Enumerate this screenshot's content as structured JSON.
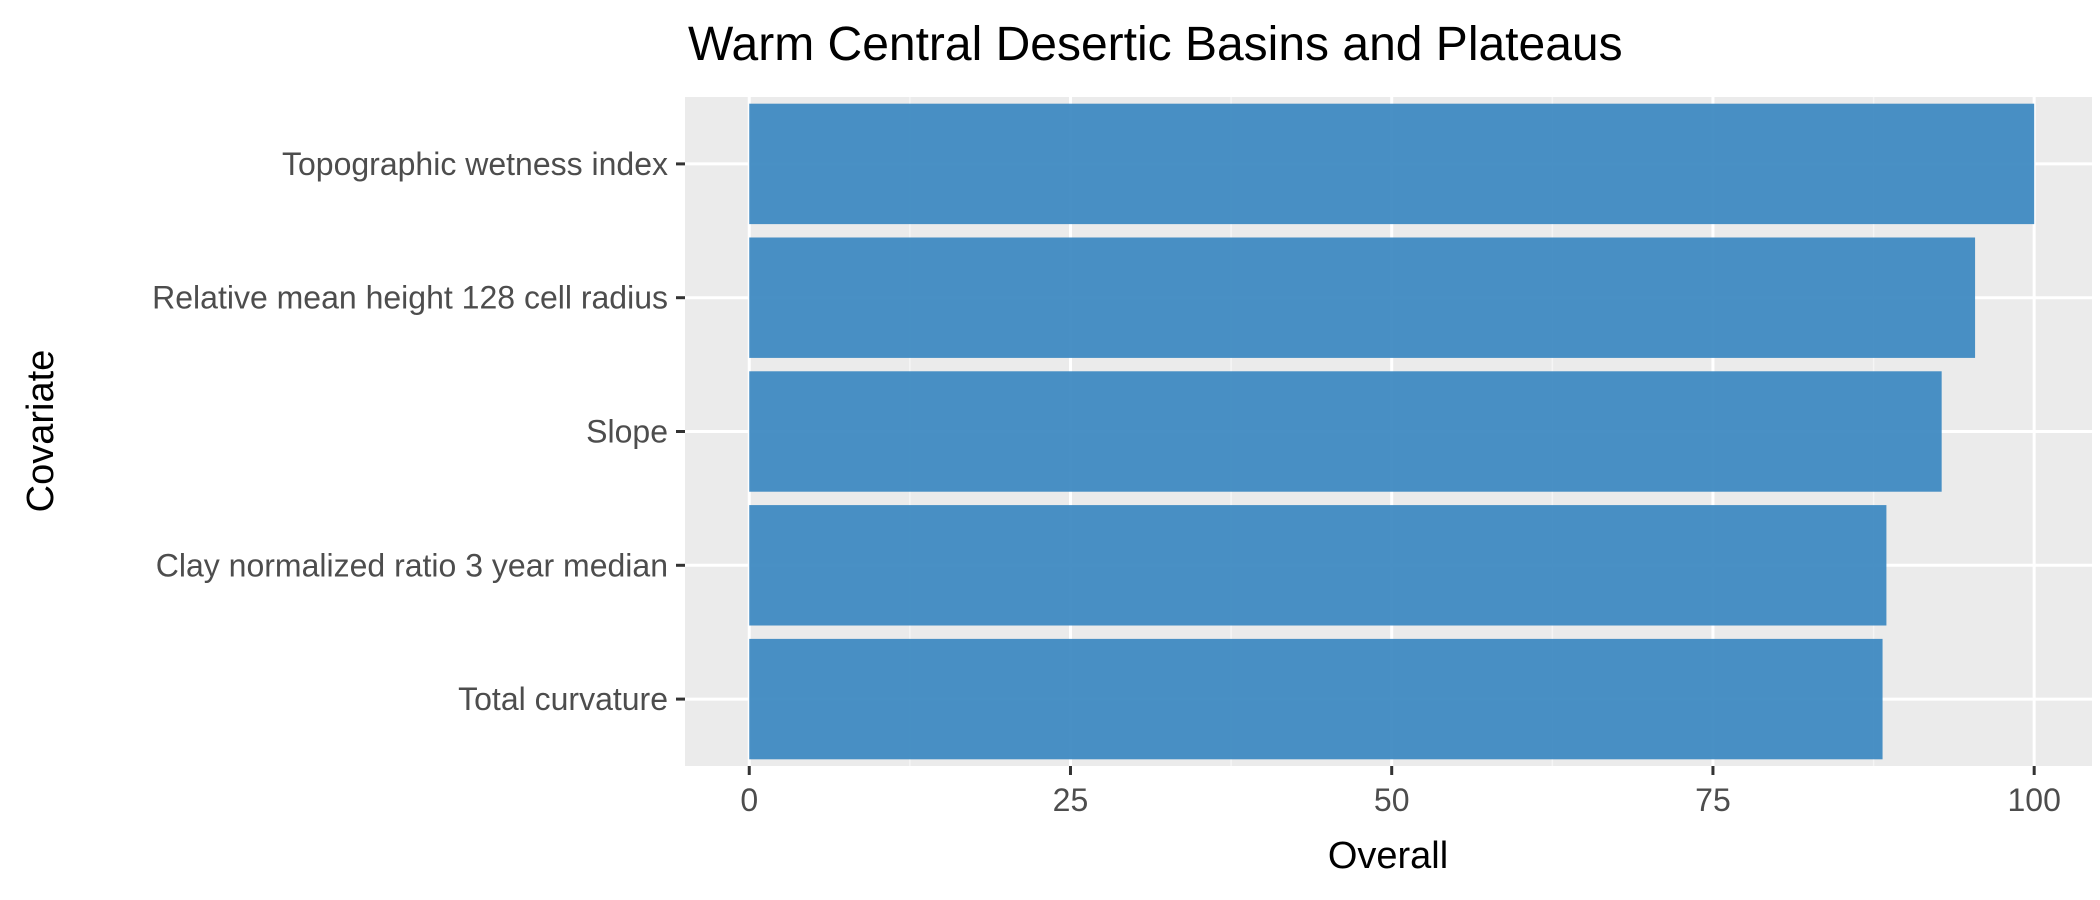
{
  "chart_data": {
    "type": "bar",
    "orientation": "horizontal",
    "title": "Warm Central Desertic Basins and Plateaus",
    "xlabel": "Overall",
    "ylabel": "Covariate",
    "categories": [
      "Topographic wetness index",
      "Relative mean height 128 cell radius",
      "Slope",
      "Clay normalized ratio 3 year median",
      "Total curvature"
    ],
    "values": [
      100,
      95.4,
      92.8,
      88.5,
      88.2
    ],
    "xlim": [
      -5,
      104.5
    ],
    "xticks": [
      0,
      25,
      50,
      75,
      100
    ],
    "grid": true,
    "legend": "none",
    "colors": {
      "bar": "#3a87c0",
      "panel_background": "#ebebeb",
      "grid_major": "#ffffff",
      "grid_minor": "#f5f5f5",
      "tick_label": "#4d4d4d",
      "tick_mark": "#333333",
      "title": "#000000"
    }
  }
}
